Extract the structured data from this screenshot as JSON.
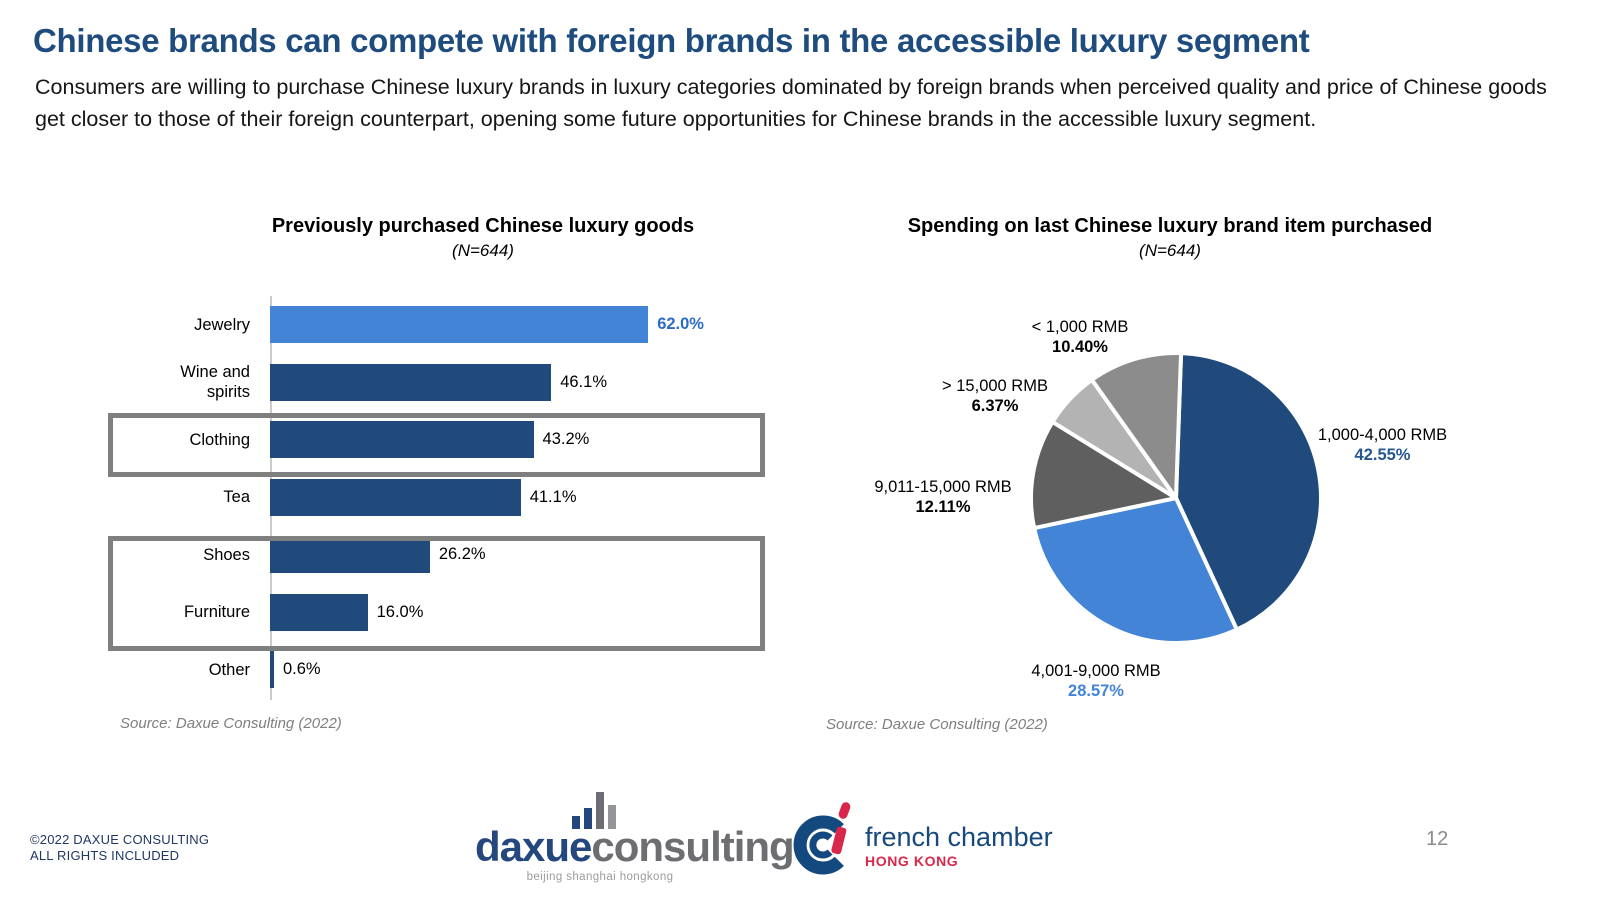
{
  "header": {
    "title": "Chinese brands can compete with foreign brands in the accessible luxury segment",
    "subtitle": "Consumers are willing to purchase Chinese luxury brands in luxury categories dominated by foreign brands when perceived quality and price of Chinese goods get closer to those of their foreign counterpart, opening some future opportunities for Chinese brands in the accessible luxury segment."
  },
  "chart_data": [
    {
      "type": "bar",
      "orientation": "horizontal",
      "title": "Previously purchased Chinese luxury goods",
      "n_label": "(N=644)",
      "categories": [
        "Jewelry",
        "Wine and spirits",
        "Clothing",
        "Tea",
        "Shoes",
        "Furniture",
        "Other"
      ],
      "values": [
        62.0,
        46.1,
        43.2,
        41.1,
        26.2,
        16.0,
        0.6
      ],
      "value_labels": [
        "62.0%",
        "46.1%",
        "43.2%",
        "41.1%",
        "26.2%",
        "16.0%",
        "0.6%"
      ],
      "bar_colors": [
        "#4484D6",
        "#1F4A7B",
        "#1F4A7B",
        "#1F4A7B",
        "#1F4A7B",
        "#1F4A7B",
        "#1F4A7B"
      ],
      "value_colors": [
        "#2B6CC4",
        "#000000",
        "#000000",
        "#000000",
        "#000000",
        "#000000",
        "#000000"
      ],
      "value_bold": [
        true,
        false,
        false,
        false,
        false,
        false,
        false
      ],
      "xlim": [
        0,
        70
      ],
      "grid": false,
      "highlighted_groups": [
        [
          "Clothing"
        ],
        [
          "Shoes",
          "Furniture"
        ]
      ],
      "source": "Source: Daxue Consulting (2022)"
    },
    {
      "type": "pie",
      "title": "Spending on last Chinese luxury brand item purchased",
      "n_label": "(N=644)",
      "start_angle_deg": 2,
      "direction": "clockwise",
      "slices": [
        {
          "label": "1,000-4,000 RMB",
          "value": 42.55,
          "value_label": "42.55%",
          "color": "#1F4A7B",
          "value_color": "#25588E"
        },
        {
          "label": "4,001-9,000 RMB",
          "value": 28.57,
          "value_label": "28.57%",
          "color": "#4484D6",
          "value_color": "#4484D6"
        },
        {
          "label": "9,011-15,000 RMB",
          "value": 12.11,
          "value_label": "12.11%",
          "color": "#5F5F5F",
          "value_color": "#000000"
        },
        {
          "label": "> 15,000 RMB",
          "value": 6.37,
          "value_label": "6.37%",
          "color": "#B3B3B3",
          "value_color": "#000000"
        },
        {
          "label": "< 1,000 RMB",
          "value": 10.4,
          "value_label": "10.40%",
          "color": "#8C8C8C",
          "value_color": "#000000"
        }
      ],
      "source": "Source: Daxue Consulting (2022)"
    }
  ],
  "footer": {
    "copyright_line1": "©2022 DAXUE CONSULTING",
    "copyright_line2": "ALL RIGHTS INCLUDED",
    "daxue_logo": {
      "word1": "daxue",
      "word2": "consulting",
      "tagline": "beijing shanghai hongkong"
    },
    "french_chamber": {
      "name": "french chamber",
      "region": "HONG KONG"
    },
    "page_number": "12"
  },
  "colors": {
    "title_blue": "#1E4C7E",
    "accent_dark_blue": "#1F4A7B",
    "accent_light_blue": "#4484D6",
    "highlight_box_gray": "#7F7F7F",
    "source_gray": "#7F7F7F"
  }
}
